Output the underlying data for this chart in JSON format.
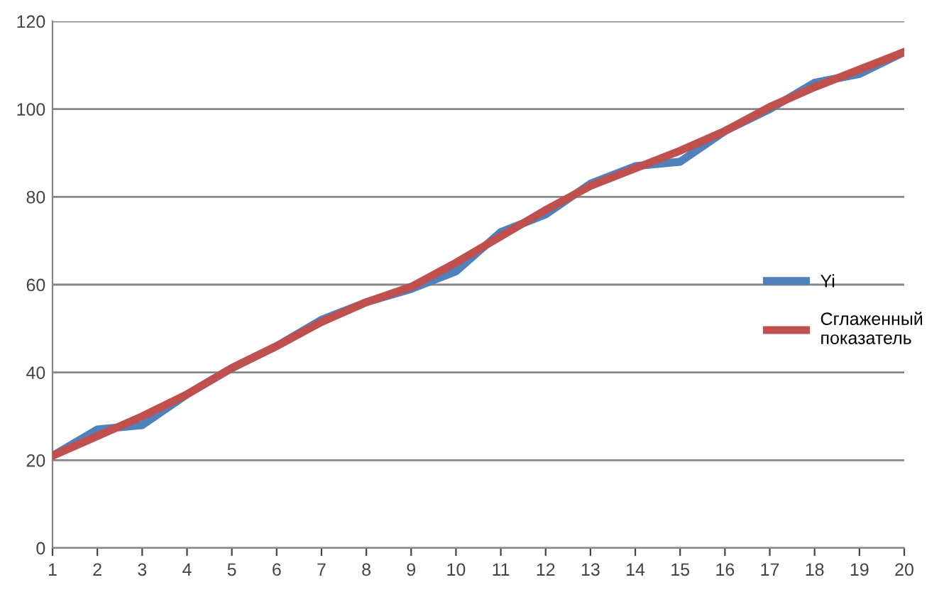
{
  "chart_data": {
    "type": "line",
    "categories": [
      "1",
      "2",
      "3",
      "4",
      "5",
      "6",
      "7",
      "8",
      "9",
      "10",
      "11",
      "12",
      "13",
      "14",
      "15",
      "16",
      "17",
      "18",
      "19",
      "20"
    ],
    "series": [
      {
        "name": "Yi",
        "color": "#4f81bd",
        "values": [
          21,
          27,
          28,
          35,
          41,
          46,
          52,
          56,
          59,
          63,
          72,
          76,
          83,
          87,
          88,
          95,
          100,
          106,
          108,
          113
        ]
      },
      {
        "name": "Сглаженный показатель",
        "color": "#c0504d",
        "values": [
          21,
          25.5,
          30,
          35,
          41,
          46,
          51.5,
          56,
          59.5,
          65,
          71,
          77,
          82.5,
          86.5,
          90.5,
          95,
          100.5,
          105,
          109,
          113
        ]
      }
    ],
    "ylim": [
      0,
      120
    ],
    "yticks": [
      0,
      20,
      40,
      60,
      80,
      100,
      120
    ],
    "grid": "y",
    "legend": "right"
  }
}
